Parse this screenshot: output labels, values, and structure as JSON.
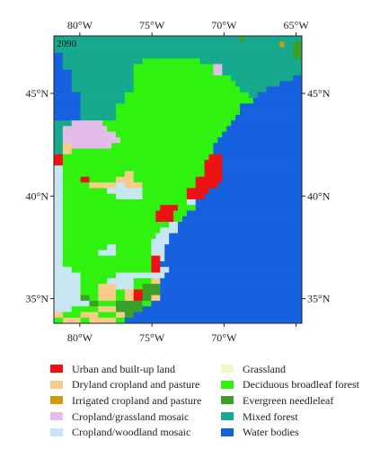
{
  "map": {
    "year": "2090",
    "lon_ticks": [
      -80,
      -75,
      -70,
      -65
    ],
    "lat_ticks": [
      45,
      40,
      35
    ],
    "lon_top_labels": [
      "80°W",
      "75°W",
      "70°W",
      "65°W"
    ],
    "lon_bottom_labels": [
      "80°W",
      "75°W",
      "70°W"
    ],
    "lat_left_labels": [
      "45°N",
      "40°N",
      "35°N"
    ],
    "lat_right_labels": [
      "45°N",
      "40°N",
      "35°N"
    ]
  },
  "legend": {
    "left": [
      {
        "key": "U",
        "label": "Urban and built-up land",
        "color": "#ee1111"
      },
      {
        "key": "D",
        "label": "Dryland cropland and pasture",
        "color": "#f7cc8a"
      },
      {
        "key": "I",
        "label": "Irrigated cropland and pasture",
        "color": "#d8960d"
      },
      {
        "key": "C",
        "label": "Cropland/grassland mosaic",
        "color": "#e3bde8"
      },
      {
        "key": "W",
        "label": "Cropland/woodland mosaic",
        "color": "#c6e6f2"
      }
    ],
    "right": [
      {
        "key": "G",
        "label": "Grassland",
        "color": "#eef8c6"
      },
      {
        "key": "F",
        "label": "Deciduous broadleaf forest",
        "color": "#2ff20e"
      },
      {
        "key": "E",
        "label": "Evergreen needleleaf",
        "color": "#3aa02a"
      },
      {
        "key": "M",
        "label": "Mixed forest",
        "color": "#17a98e"
      },
      {
        "key": "B",
        "label": "Water bodies",
        "color": "#1561e0"
      }
    ]
  },
  "grid_rows": [
    "MMMMMMMMMMMMMMMMMMMMMMMMMMMMMMMMMMMMMMMMMMEMMMMMMMMMMMMM",
    "MMMMMMMMMMMMMMMMMMMMMMMMMMMMMMMMMMMMMMMMMMMMMMMMMMMIMMEE",
    "MMMMMMMMMMMMMMMMMMMMMMMMMMMMMMMMMMMMMMMMMMMMMMMMMMMMMMEE",
    "BBMMMMMMMMMMMMMMMMMMMMMMMMMMMMMMMMMMMMMMMMMMMMMMMMMMMMEE",
    "BBMMMMMMMMMMMMMMMMMMFFFFFFFFFFFFFMMMMMMMMMMMMMMMMMMMMMMM",
    "BBMMMMMMMMMMMMMMMMFFFFFFFFFFFFFFFFFFCCMMMMMMMMMMMMMMMMMM",
    "BBBBMMMMMMMMMMMMMMFFFFFFFFFFFFFFFFFFCCMMMMMMMMMMMMMMMMMM",
    "BBBBMMMMMMMMMMMMMMFFFFFFFFFFFFFFFFFFFFFFMMMMMMMMMMMMMMBB",
    "BBBBMMMMMMMMMMMMMMFFFFFFFFFFFFFFFFFFFFFFFMMMMMMMMMMBBBBB",
    "BBBBMMMMMMMMMMMMMMFFFFFFFFFFFFFFFFFFFFFFFFMMMMMMBBBBBBBB",
    "BBBBBBMMMMMMMMMMFFFFFFFFFFFFFFFFFFFFFFFFFFFFMMBBBBBBBBBB",
    "BBBBBBMMMMMMMMMMFFFFFFFFFFFFFFFFFFFFFFFFFFFFFBBBBBBBBBBB",
    "BBBBBBMMMMMMMMFFFFFFFFFFFFFFFFFFFFFFFFFFFFBBBBBBBBBBBBBB",
    "BBBBBBMMMMMMMMFFFFFFFFFFFFFFFFFFFFFFFFFFFFBBBBBBBBBBBBBB",
    "BBBBBBMMMMMMMMFFFFFFFFFFFFFFFFFFFFFFFFFFFBBBBBBBBBBBBBBB",
    "MMMMCCCCCCCFFFFFFFFFFFFFFFFFFFFFFFFFFFFFBBBBBBBBBBBBBBBB",
    "MMCCCCCCCCCCFFFFFFFFFFFFFFFFFFFFFFFFFFFBBBBBBBBBBBBBBBBB",
    "MMCCCCCCCCCCCCFFFFFFFFFFFFFFFFFFFFFFFFBBBBBBBBBBBBBBBBBB",
    "MMCCCCCCCCCCCCCFFFFFFFFFFFFFFFFFFFFFFBBBBBBBBBBBBBBBBBBB",
    "MMDDCCCCCCCCCFFFFFFFFFFFFFFFFFFFFFFFBBBBBBBBBBBBBBBBBBBB",
    "MMDDFFFFFFFFFFFFFFFFFFFFFFFFFFFFFFFFBBBBBBBBBBBBBBBBBBBB",
    "UUFFFFFFFFFFFFFFFFFFFFFFFFFFFFFFFFFUUUBBBBBBBBBBBBBBBBBB",
    "UUFFFFFFFFFFFFFFFFFFFFFFFFFFFFFFFFUUUUBBBBBBBBBBBBBBBBBB",
    "WWFFFFFFFFFFFFFFFFFFFFFFFFFFFFFFFFUUUUBBBBBBBBBBBBBBBBBB",
    "WWFFFFFFFFFFFFFFDDFFFFFFFFFFFFFFFFUUUUBBBBBBBBBBBBBBBBBB",
    "WWFFFFUUFFFFFFDDDDFFFFFFFFFFFFFFUUUUUUBBBBBBBBBBBBBBBBBB",
    "WWFFFFFFDDDDDDWWDDDDFFFFFFFFFFFFUUUUUBBBBBBBBBBBBBBBBBBB",
    "WWFFFFFFFFFFWWWWWWWWFFFFFFFFFFUUUUUBBBBBBBBBBBBBBBBBBBBB",
    "WWFFFFFFFFFFFFWWWWWWFFFFFFFFFFUUUUBBBBBBBBBBBBBBBBBBBBBB",
    "WWFFFFFFFFFFFFFFFFFFFFFFFFFFFFWWBBBBBBBBBBBBBBBBBBBBBBBB",
    "WWFFFFFFFFFFFFFFFFFFFFFFUUUUFFFFBBBBBBBBBBBBBBBBBBBBBBBB",
    "WWFFFFFFFFFFFFFFFFFFFFFUUUUFFFBBBBBBBBBBBBBBBBBBBBBBBBBB",
    "WWFFFFFFFFFFFFFFFFFFFFFUUUUFFBBBBBBBBBBBBBBBBBBBBBBBBBBB",
    "WWFFFFFFFFFFFFFFFFFFFFFFFFWWBBBBBBBBBBBBBBBBBBBBBBBBBBBB",
    "WWFFFFFFFFFFFFFFFFFFFFFFWWWWBBBBBBBBBBBBBBBBBBBBBBBBBBBB",
    "WWFFFFFFFFFFFFFFFFFFFFFWWWBBBBBBBBBBBBBBBBBBBBBBBBBBBBBB",
    "WWFFFFFFFFFFFFFFFFFFFFWWWWBBBBBBBBBBBBBBBBBBBBBBBBBBBBBB",
    "WWFFFFFFFFFFWWFFFFFFFFWWWBBBBBBBBBBBBBBBBBBBBBBBBBBBBBBB",
    "WWFFFFFFFFWWWWFFFFFFFFWWWBBBBBBBBBBBBBBBBBBBBBBBBBBBBBBB",
    "WWFFFFFFFFFFFFFFFFFFFFUUWBBBBBBBBBBBBBBBBBBBBBBBBBBBBBBB",
    "WWFFFFFFFFFFFFFFFFFFFFUUBBBBBBBBBBBBBBBBBBBBBBBBBBBBBBBB",
    "WWWWFFFFFFFFFFFFFFFFFFUUWWBBBBBBBBBBBBBBBBBBBBBBBBBBBBBB",
    "WWWWWWFFFFFFFFWWWWWWWWWWWBBBBBBBBBBBBBBBBBBBBBBBBBBBBBBB",
    "WWWWWWFFFFFFWWWWWWFFFFDDBBBBBBBBBBBBBBBBBBBBBBBBBBBBBBBB",
    "WWWWWWFFFFDDDDWWWWFFEEEEBBBBBBBBBBBBBBBBBBBBBBBBBBBBBBBB",
    "WWWWWWFFFFDDDDFFDDUUEEEEBBBBBBBBBBBBBBBBBBBBBBBBBBBBBBBB",
    "WWWWWWEEFFDDDDFFDDUUEEDDBBBBBBBBBBBBBBBBBBBBBBBBBBBBBBBB",
    "WWWWWWWWEEFFFFEEEEEEFFBBBBBBBBBBBBBBBBBBBBBBBBBBBBBBBBBB",
    "WWWWFFFFFFDDDDEEEEEEBBBBBBBBBBBBBBBBBBBBBBBBBBBBBBBBBBBB",
    "DDFFFFDDDDFFFFDDEEBBBBBBBBBBBBBBBBBBBBBBBBBBBBBBBBBBBBBB",
    "FFDDDDFFDDDDDDFFBBBBBBBBBBBBBBBBBBBBBBBBBBBBBBBBBBBBBBBB"
  ]
}
